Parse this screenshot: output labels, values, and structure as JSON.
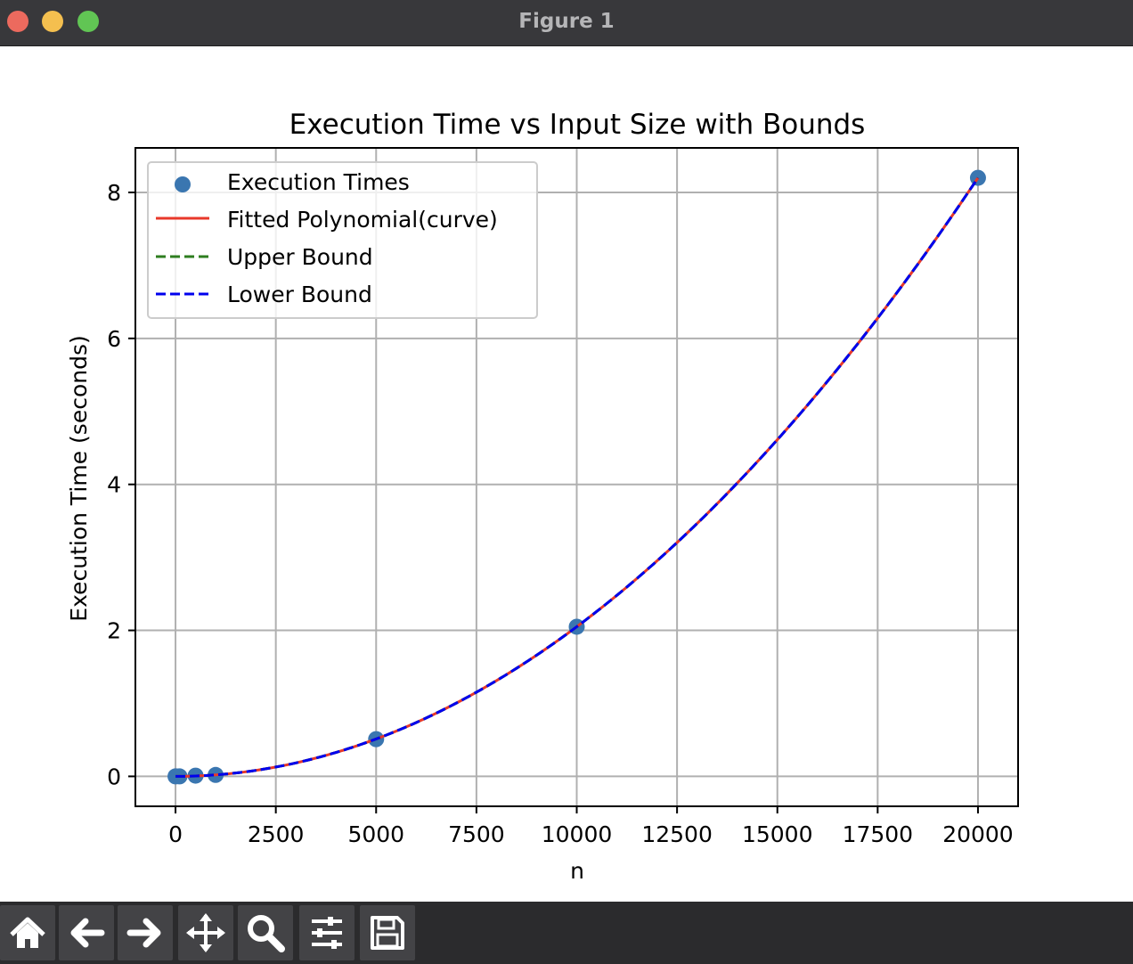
{
  "window": {
    "title": "Figure 1"
  },
  "toolbar": {
    "buttons": [
      {
        "name": "home-button",
        "icon": "home-icon"
      },
      {
        "name": "back-button",
        "icon": "arrow-left-icon"
      },
      {
        "name": "forward-button",
        "icon": "arrow-right-icon"
      },
      {
        "name": "pan-button",
        "icon": "move-icon"
      },
      {
        "name": "zoom-button",
        "icon": "magnifier-icon"
      },
      {
        "name": "configure-subplots-button",
        "icon": "sliders-icon"
      },
      {
        "name": "save-button",
        "icon": "floppy-disk-icon"
      }
    ]
  },
  "chart_data": {
    "type": "scatter",
    "title": "Execution Time vs Input Size with Bounds",
    "xlabel": "n",
    "ylabel": "Execution Time (seconds)",
    "xlim": [
      -1000,
      21000
    ],
    "ylim": [
      -0.41,
      8.61
    ],
    "xticks": [
      0,
      2500,
      5000,
      7500,
      10000,
      12500,
      15000,
      17500,
      20000
    ],
    "xtick_labels": [
      "0",
      "2500",
      "5000",
      "7500",
      "10000",
      "12500",
      "15000",
      "17500",
      "20000"
    ],
    "yticks": [
      0,
      2,
      4,
      6,
      8
    ],
    "ytick_labels": [
      "0",
      "2",
      "4",
      "6",
      "8"
    ],
    "grid": true,
    "legend_position": "upper left",
    "scatter": {
      "name": "Execution Times",
      "color": "#3a76b0",
      "x": [
        0,
        100,
        500,
        1000,
        5000,
        10000,
        20000
      ],
      "y": [
        0.0,
        0.0,
        0.01,
        0.02,
        0.51,
        2.05,
        8.2
      ]
    },
    "series": [
      {
        "name": "Fitted Polynomial(curve)",
        "color": "#e8382a",
        "style": "solid",
        "coef_quadratic": 2.05e-08,
        "x_range": [
          0,
          20000
        ]
      },
      {
        "name": "Upper Bound",
        "color": "#2e7d1f",
        "style": "dashed",
        "coef_quadratic": 2.05e-08,
        "x_range": [
          0,
          20000
        ]
      },
      {
        "name": "Lower Bound",
        "color": "#0000ee",
        "style": "dashed",
        "coef_quadratic": 2.05e-08,
        "x_range": [
          0,
          20000
        ]
      }
    ]
  }
}
